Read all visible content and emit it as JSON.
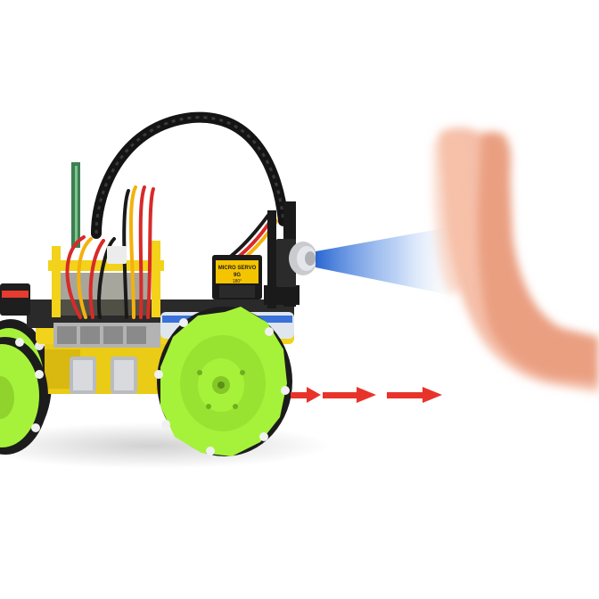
{
  "scene": {
    "subject": "mecanum-wheel-robot-car",
    "background_color": "#ffffff",
    "servo_label_line1": "MICRO SERVO",
    "servo_label_line2": "9G",
    "servo_label_line3": "180°",
    "motion_arrow_count": 3,
    "colors": {
      "wheel_green": "#a6f23a",
      "wheel_dark": "#1c1c1c",
      "chassis_yellow": "#f2d21a",
      "board_gray": "#9a9a9a",
      "cable_black": "#141414",
      "servo_yellow": "#f5c400",
      "beam_blue": "#2a6fd6",
      "arrow_red": "#e8332b",
      "hand_skin": "#f1a98c"
    }
  }
}
